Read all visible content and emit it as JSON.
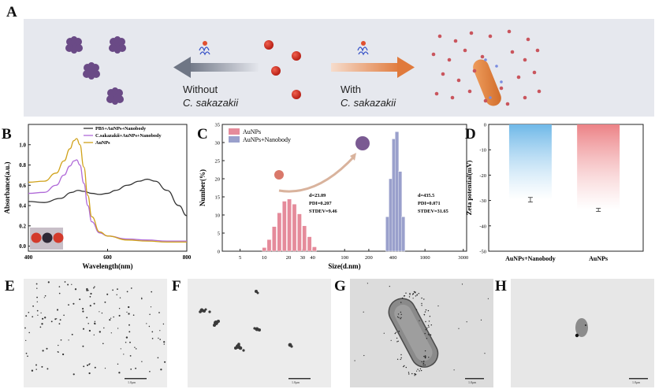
{
  "panel_labels": {
    "a": "A",
    "b": "B",
    "c": "C",
    "d": "D",
    "e": "E",
    "f": "F",
    "g": "G",
    "h": "H"
  },
  "panelA": {
    "left_arrow_line1": "Without",
    "left_arrow_line2": "C. sakazakii",
    "right_arrow_line1": "With",
    "right_arrow_line2": "C. sakazakii",
    "colors": {
      "nanoparticle": "#d42a1e",
      "aggregate": "#6a4a86",
      "bacterium": "#e47e3c",
      "dot": "#c9555d",
      "background": "#e6e8ee"
    }
  },
  "chart_data": [
    {
      "panel": "B",
      "type": "line",
      "xlabel": "Wavelength(nm)",
      "ylabel": "Absorbance(a.u.)",
      "xlim": [
        400,
        800
      ],
      "ylim": [
        -0.05,
        1.2
      ],
      "xticks": [
        "400",
        "600",
        "800"
      ],
      "yticks": [
        "0.0",
        "0.2",
        "0.4",
        "0.6",
        "0.8",
        "1.0"
      ],
      "legend": [
        "PBS+AuNPs+Nanobody",
        "C.sakazakii+AuNPs+Nanobody",
        "AuNPs"
      ],
      "series": [
        {
          "name": "PBS+AuNPs+Nanobody",
          "color": "#333333",
          "x": [
            400,
            440,
            480,
            510,
            525,
            540,
            560,
            580,
            600,
            620,
            650,
            680,
            700,
            720,
            750,
            780,
            800
          ],
          "y": [
            0.44,
            0.43,
            0.47,
            0.53,
            0.55,
            0.54,
            0.52,
            0.51,
            0.52,
            0.55,
            0.6,
            0.64,
            0.66,
            0.64,
            0.55,
            0.4,
            0.3
          ]
        },
        {
          "name": "C.sakazakii+AuNPs+Nanobody",
          "color": "#b06ad8",
          "x": [
            400,
            440,
            470,
            490,
            505,
            515,
            522,
            530,
            540,
            550,
            560,
            580,
            600,
            650,
            700,
            750,
            800
          ],
          "y": [
            0.52,
            0.53,
            0.6,
            0.7,
            0.79,
            0.84,
            0.85,
            0.8,
            0.62,
            0.4,
            0.24,
            0.13,
            0.1,
            0.07,
            0.06,
            0.05,
            0.05
          ]
        },
        {
          "name": "AuNPs",
          "color": "#d0a21a",
          "x": [
            400,
            440,
            470,
            490,
            505,
            515,
            522,
            530,
            540,
            550,
            560,
            580,
            600,
            650,
            700,
            750,
            800
          ],
          "y": [
            0.63,
            0.64,
            0.72,
            0.84,
            0.96,
            1.04,
            1.06,
            1.0,
            0.78,
            0.5,
            0.29,
            0.14,
            0.1,
            0.06,
            0.05,
            0.04,
            0.04
          ]
        }
      ]
    },
    {
      "panel": "C",
      "type": "bar",
      "xlabel": "Size(d.nm)",
      "ylabel": "Number(%)",
      "ylim": [
        0,
        35
      ],
      "xticks": [
        "5",
        "10",
        "20",
        "30",
        "40",
        "100",
        "200",
        "400",
        "1000",
        "3000"
      ],
      "yticks": [
        "0",
        "5",
        "10",
        "15",
        "20",
        "25",
        "30",
        "35"
      ],
      "legend": [
        "AuNPs",
        "AuNPs+Nanobody"
      ],
      "annotations": [
        {
          "series": "AuNPs",
          "lines": [
            "d=23.09",
            "PDI=0.207",
            "STDEV=9.46"
          ]
        },
        {
          "series": "AuNPs+Nanobody",
          "lines": [
            "d=435.5",
            "PDI=0.071",
            "STDEV=31.65"
          ]
        }
      ],
      "series": [
        {
          "name": "AuNPs",
          "color": "#e58b9b",
          "x": [
            10,
            11.5,
            13.3,
            15.4,
            17.8,
            20.5,
            23.7,
            27.4,
            31.6,
            36.5,
            42.1
          ],
          "values": [
            1.0,
            3.2,
            6.8,
            10.6,
            13.8,
            14.4,
            13.0,
            10.3,
            7.0,
            4.0,
            1.2
          ]
        },
        {
          "name": "AuNPs+Nanobody",
          "color": "#9aa0cc",
          "x": [
            342,
            375,
            410,
            448,
            490,
            536
          ],
          "values": [
            9.5,
            20.0,
            31.0,
            33.0,
            22.0,
            9.5
          ]
        }
      ]
    },
    {
      "panel": "D",
      "type": "bar",
      "ylabel": "Zeta potential(mV)",
      "ylim": [
        -50,
        0
      ],
      "yticks": [
        "0",
        "-10",
        "-20",
        "-30",
        "-40",
        "-50"
      ],
      "categories": [
        "AuNPs+Nanobody",
        "AuNPs"
      ],
      "values": [
        -29.7,
        -33.7
      ],
      "errors": [
        0.9,
        0.6
      ],
      "colors": [
        "#6fb8e8",
        "#ec8286"
      ]
    }
  ],
  "tem": {
    "scale_label": "1.0μm"
  }
}
